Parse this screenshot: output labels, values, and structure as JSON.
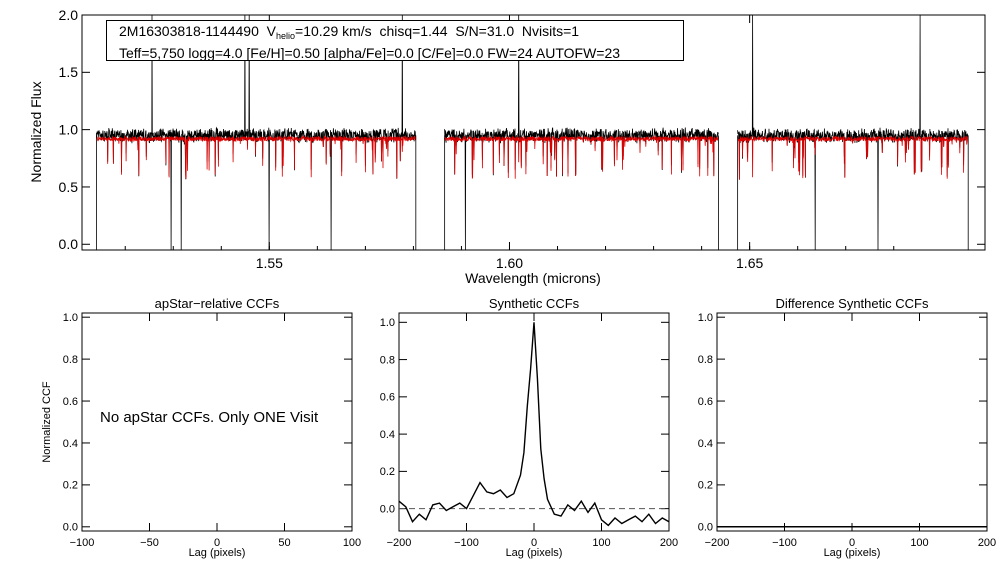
{
  "header": {
    "object_id": "2M16303818-1144490",
    "vhelio_prefix": "V",
    "vhelio_sub": "helio",
    "vhelio_value": "=10.29 km/s",
    "chisq": "chisq=1.44",
    "snr": "S/N=31.0",
    "nvisits": "Nvisits=1",
    "line2": "Teff=5,750 logg=4.0 [Fe/H]=0.50 [alpha/Fe]=0.0 [C/Fe]=0.0 FW=24 AUTOFW=23"
  },
  "colors": {
    "observed": "#000000",
    "model": "#dd0000",
    "axes": "#000000"
  },
  "chart_data": [
    {
      "type": "line",
      "panel": "spectrum",
      "xlabel": "Wavelength (microns)",
      "ylabel": "Normalized Flux",
      "xlim": [
        1.511,
        1.699
      ],
      "ylim": [
        -0.05,
        2.0
      ],
      "xticks": [
        "1.55",
        "1.60",
        "1.65"
      ],
      "yticks": [
        "0.0",
        "0.5",
        "1.0",
        "1.5",
        "2.0"
      ],
      "detector_chips": [
        [
          1.514,
          1.5805
        ],
        [
          1.5865,
          1.6435
        ],
        [
          1.6475,
          1.6955
        ]
      ],
      "series": [
        {
          "values_description": "observed spectrum",
          "continuum": 0.95,
          "noise": 0.05
        },
        {
          "values_description": "synthetic model",
          "continuum": 0.92,
          "noise": 0.04
        }
      ]
    },
    {
      "type": "line",
      "panel": "apstar",
      "title": "apStar−relative CCFs",
      "xlabel": "Lag (pixels)",
      "ylabel": "Normalized CCF",
      "xlim": [
        -100,
        100
      ],
      "ylim": [
        -0.02,
        1.02
      ],
      "xticks": [
        "−100",
        "−50",
        "0",
        "50",
        "100"
      ],
      "yticks": [
        "0.0",
        "0.2",
        "0.4",
        "0.6",
        "0.8",
        "1.0"
      ],
      "message": "No apStar CCFs.  Only ONE Visit"
    },
    {
      "type": "line",
      "panel": "synthetic",
      "title": "Synthetic CCFs",
      "xlabel": "Lag (pixels)",
      "xlim": [
        -200,
        200
      ],
      "ylim": [
        -0.12,
        1.05
      ],
      "xticks": [
        "−200",
        "−100",
        "0",
        "100",
        "200"
      ],
      "yticks": [
        "0.0",
        "0.2",
        "0.4",
        "0.6",
        "0.8",
        "1.0"
      ],
      "reference_line": 0.0,
      "x": [
        -200,
        -190,
        -180,
        -170,
        -160,
        -150,
        -140,
        -130,
        -120,
        -110,
        -100,
        -90,
        -80,
        -70,
        -60,
        -50,
        -40,
        -30,
        -20,
        -15,
        -10,
        -5,
        0,
        5,
        10,
        15,
        20,
        30,
        40,
        50,
        60,
        70,
        80,
        90,
        100,
        110,
        120,
        130,
        140,
        150,
        160,
        170,
        180,
        190,
        200
      ],
      "y": [
        0.04,
        0.01,
        -0.07,
        -0.03,
        -0.06,
        0.02,
        0.03,
        -0.01,
        0.01,
        0.03,
        0.0,
        0.07,
        0.14,
        0.09,
        0.08,
        0.1,
        0.06,
        0.08,
        0.18,
        0.3,
        0.55,
        0.75,
        1.0,
        0.7,
        0.32,
        0.16,
        0.05,
        -0.03,
        -0.04,
        0.02,
        -0.01,
        0.04,
        -0.02,
        0.03,
        -0.06,
        -0.09,
        -0.05,
        -0.08,
        -0.06,
        -0.04,
        -0.07,
        -0.03,
        -0.08,
        -0.05,
        -0.07
      ]
    },
    {
      "type": "line",
      "panel": "difference",
      "title": "Difference Synthetic CCFs",
      "xlabel": "Lag (pixels)",
      "xlim": [
        -200,
        200
      ],
      "ylim": [
        -0.02,
        1.02
      ],
      "xticks": [
        "−200",
        "−100",
        "0",
        "100",
        "200"
      ],
      "yticks": [
        "0.0",
        "0.2",
        "0.4",
        "0.6",
        "0.8",
        "1.0"
      ]
    }
  ]
}
